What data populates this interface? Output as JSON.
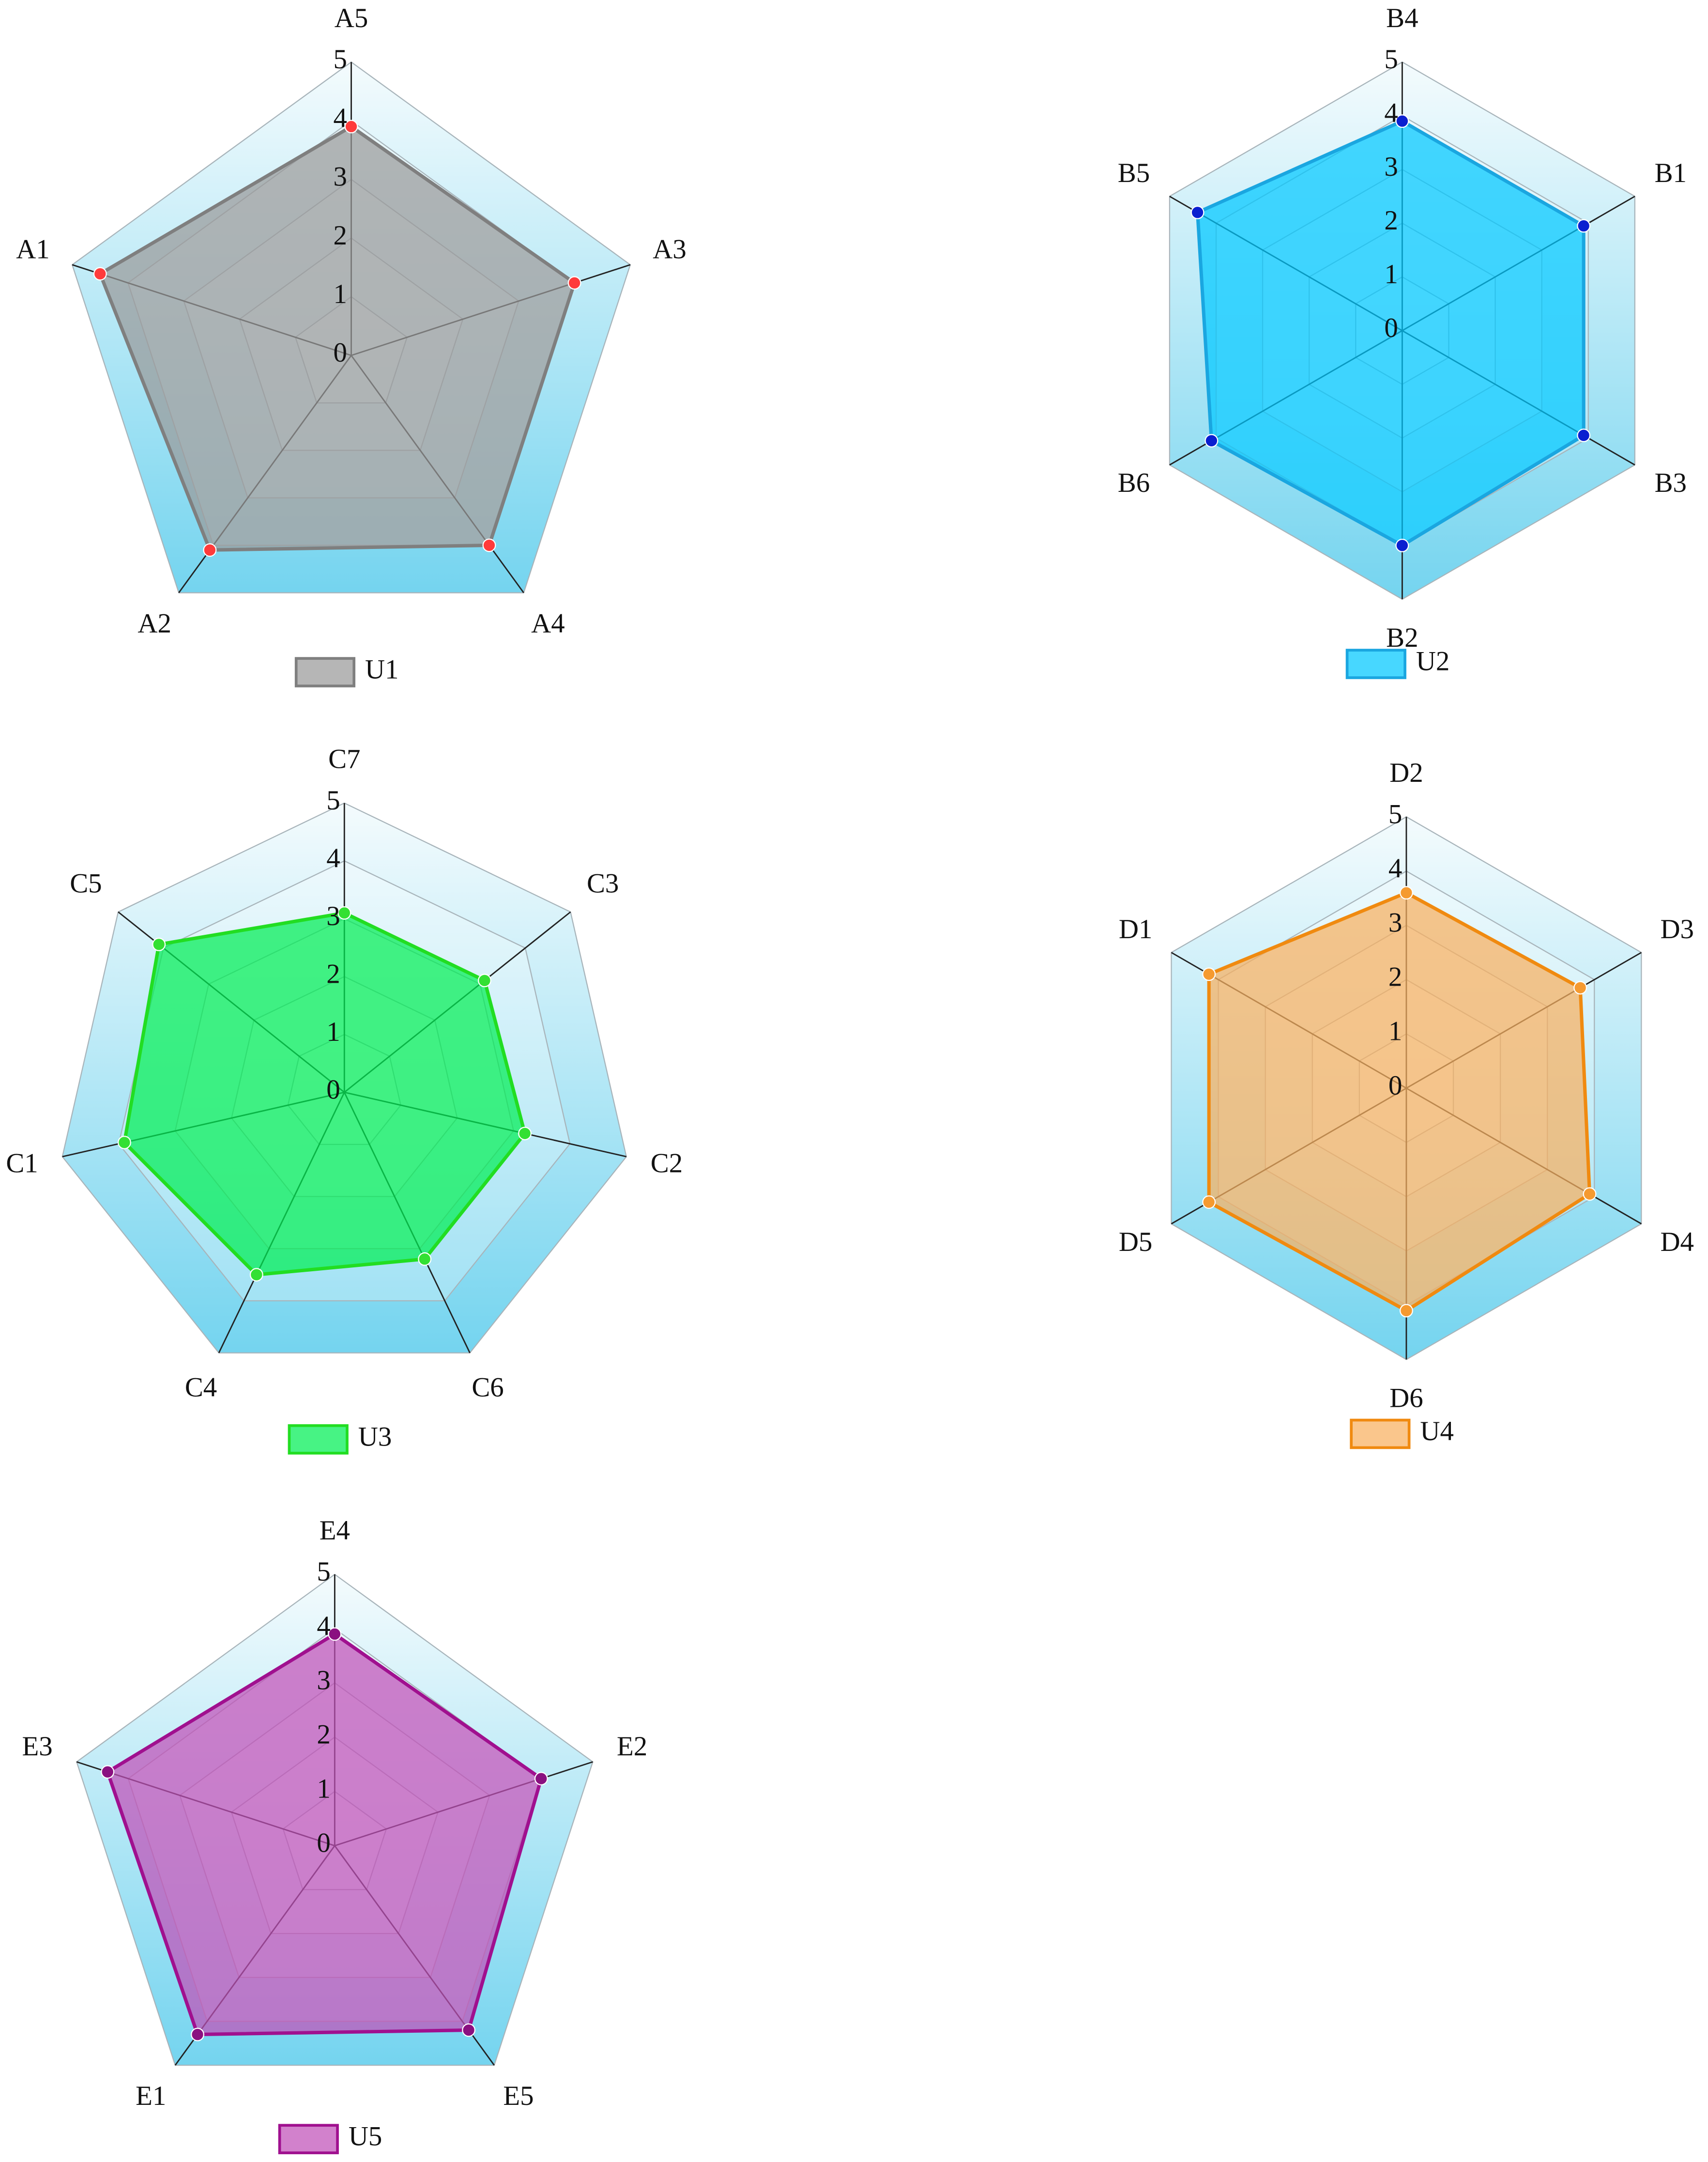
{
  "chart_data": [
    {
      "type": "radar",
      "categories": [
        "A5",
        "A3",
        "A4",
        "A2",
        "A1"
      ],
      "series": [
        {
          "name": "U1",
          "color": "#9a9a9a",
          "line_color": "#7f7f7f",
          "marker_color": "#ff3b3b",
          "values": [
            3.9,
            4.0,
            4.0,
            4.1,
            4.5
          ]
        }
      ],
      "rlim": [
        0,
        5
      ],
      "rticks": [
        0,
        1,
        2,
        3,
        4,
        5
      ],
      "grid": true
    },
    {
      "type": "radar",
      "categories": [
        "B4",
        "B1",
        "B3",
        "B2",
        "B6",
        "B5"
      ],
      "series": [
        {
          "name": "U2",
          "color": "#00c8ff",
          "line_color": "#1aa6e0",
          "marker_color": "#0a1fd0",
          "values": [
            3.9,
            3.9,
            3.9,
            4.0,
            4.1,
            4.4
          ]
        }
      ],
      "rlim": [
        0,
        5
      ],
      "rticks": [
        0,
        1,
        2,
        3,
        4,
        5
      ],
      "grid": true
    },
    {
      "type": "radar",
      "categories": [
        "C7",
        "C3",
        "C2",
        "C6",
        "C4",
        "C1",
        "C5"
      ],
      "series": [
        {
          "name": "U3",
          "color": "#00ee55",
          "line_color": "#22dd22",
          "marker_color": "#33e033",
          "values": [
            3.1,
            3.1,
            3.2,
            3.2,
            3.5,
            3.9,
            4.1
          ]
        }
      ],
      "rlim": [
        0,
        5
      ],
      "rticks": [
        0,
        1,
        2,
        3,
        4,
        5
      ],
      "grid": true
    },
    {
      "type": "radar",
      "categories": [
        "D2",
        "D3",
        "D4",
        "D6",
        "D5",
        "D1"
      ],
      "series": [
        {
          "name": "U4",
          "color": "#f8b060",
          "line_color": "#f08a10",
          "marker_color": "#f59a30",
          "values": [
            3.6,
            3.7,
            3.9,
            4.1,
            4.2,
            4.2
          ]
        }
      ],
      "rlim": [
        0,
        5
      ],
      "rticks": [
        0,
        1,
        2,
        3,
        4,
        5
      ],
      "grid": true
    },
    {
      "type": "radar",
      "categories": [
        "E4",
        "E2",
        "E5",
        "E1",
        "E3"
      ],
      "series": [
        {
          "name": "U5",
          "color": "#c050b8",
          "line_color": "#a0108f",
          "marker_color": "#8a1080",
          "values": [
            3.9,
            4.0,
            4.2,
            4.3,
            4.4
          ]
        }
      ],
      "rlim": [
        0,
        5
      ],
      "rticks": [
        0,
        1,
        2,
        3,
        4,
        5
      ],
      "grid": true
    }
  ]
}
